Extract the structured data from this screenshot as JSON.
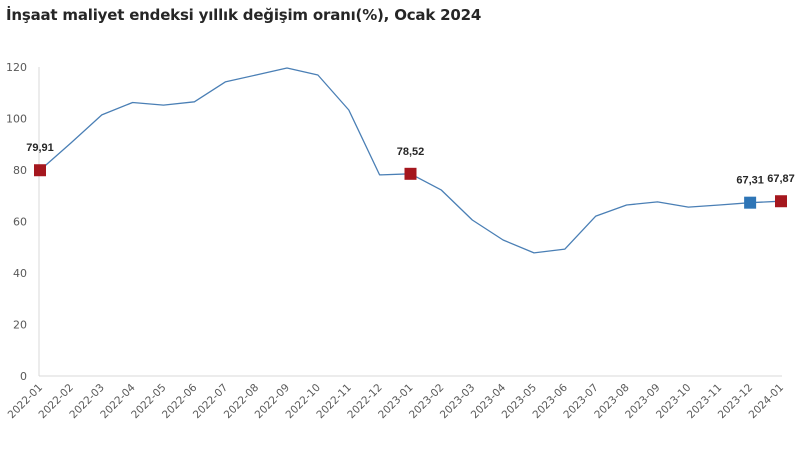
{
  "title": "İnşaat maliyet endeksi yıllık değişim oranı(%), Ocak 2024",
  "colors": {
    "line": "#4a7fb5",
    "marker_red": "#a5171e",
    "marker_blue": "#2e75b6",
    "axis": "#d9d9d9",
    "tick_text": "#595959"
  },
  "chart_data": {
    "type": "line",
    "title": "İnşaat maliyet endeksi yıllık değişim oranı(%), Ocak 2024",
    "xlabel": "",
    "ylabel": "",
    "ylim": [
      0,
      120
    ],
    "yticks": [
      0,
      20,
      40,
      60,
      80,
      100,
      120
    ],
    "grid": false,
    "legend": null,
    "categories": [
      "2022-01",
      "2022-02",
      "2022-03",
      "2022-04",
      "2022-05",
      "2022-06",
      "2022-07",
      "2022-08",
      "2022-09",
      "2022-10",
      "2022-11",
      "2022-12",
      "2023-01",
      "2023-02",
      "2023-03",
      "2023-04",
      "2023-05",
      "2023-06",
      "2023-07",
      "2023-08",
      "2023-09",
      "2023-10",
      "2023-11",
      "2023-12",
      "2024-01"
    ],
    "series": [
      {
        "name": "Yıllık değişim oranı (%)",
        "values": [
          79.91,
          90.5,
          101.4,
          106.2,
          105.2,
          106.5,
          114.2,
          116.9,
          119.6,
          116.9,
          103.3,
          78.1,
          78.52,
          72.2,
          60.6,
          52.8,
          47.8,
          49.3,
          62.1,
          66.4,
          67.6,
          65.6,
          66.4,
          67.31,
          67.87
        ]
      }
    ],
    "annotations": [
      {
        "index": 0,
        "label": "79,91",
        "marker": "red"
      },
      {
        "index": 12,
        "label": "78,52",
        "marker": "red"
      },
      {
        "index": 23,
        "label": "67,31",
        "marker": "blue"
      },
      {
        "index": 24,
        "label": "67,87",
        "marker": "red"
      }
    ]
  }
}
